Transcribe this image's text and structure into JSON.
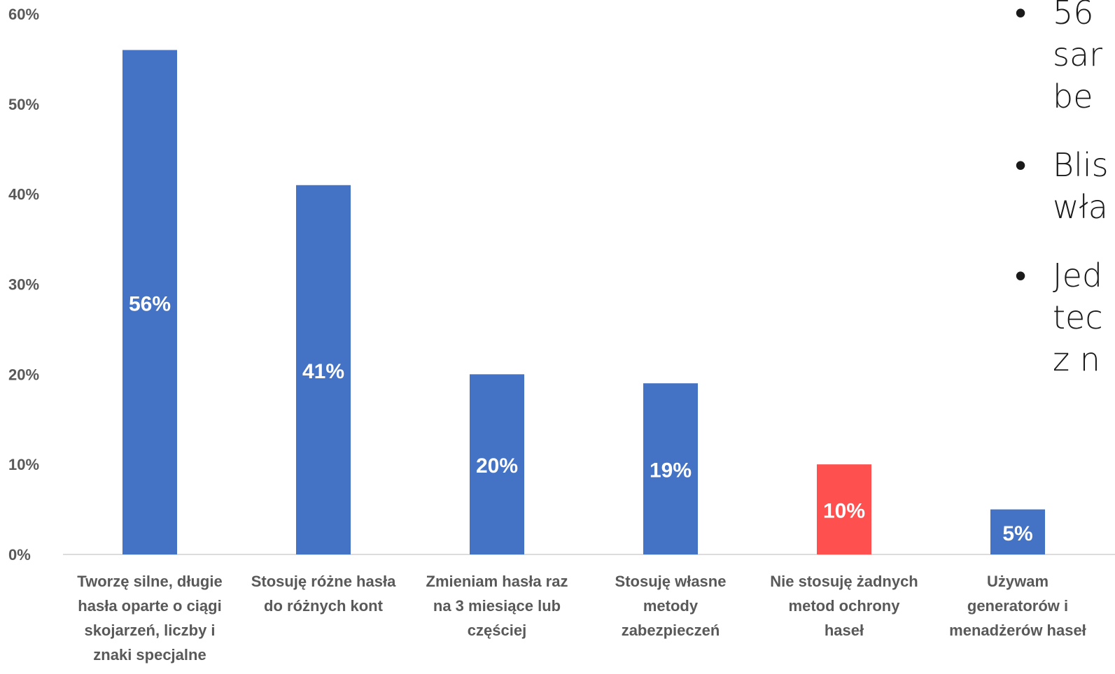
{
  "chart_data": {
    "type": "bar",
    "categories": [
      "Tworzę silne, długie hasła oparte o ciągi skojarzeń, liczby i znaki specjalne",
      "Stosuję różne hasła do różnych kont",
      "Zmieniam hasła raz na 3 miesiące lub częściej",
      "Stosuję własne metody zabezpieczeń",
      "Nie stosuję żadnych metod ochrony haseł",
      "Używam generatorów i menadżerów haseł"
    ],
    "category_lines": [
      [
        "Tworzę silne, długie",
        "hasła oparte o ciągi",
        "skojarzeń, liczby i",
        "znaki specjalne"
      ],
      [
        "Stosuję różne hasła",
        "do różnych kont"
      ],
      [
        "Zmieniam hasła raz",
        "na 3 miesiące lub",
        "częściej"
      ],
      [
        "Stosuję własne",
        "metody",
        "zabezpieczeń"
      ],
      [
        "Nie stosuję żadnych",
        "metod ochrony",
        "haseł"
      ],
      [
        "Używam",
        "generatorów i",
        "menadżerów haseł"
      ]
    ],
    "values": [
      56,
      41,
      20,
      19,
      10,
      5
    ],
    "data_labels": [
      "56%",
      "41%",
      "20%",
      "19%",
      "10%",
      "5%"
    ],
    "colors": [
      "#4472C4",
      "#4472C4",
      "#4472C4",
      "#4472C4",
      "#FF5050",
      "#4472C4"
    ],
    "ylim": [
      0,
      60
    ],
    "yticks": [
      "0%",
      "10%",
      "20%",
      "30%",
      "40%",
      "50%",
      "60%"
    ],
    "grid": false
  },
  "bullets": [
    {
      "lines": [
        "56",
        "sar",
        "be"
      ]
    },
    {
      "lines": [
        "Blis",
        "wła"
      ]
    },
    {
      "lines": [
        "Jed",
        "tec",
        "z n"
      ]
    }
  ]
}
